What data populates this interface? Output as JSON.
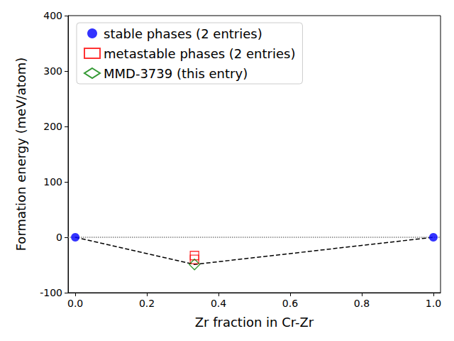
{
  "chart_data": {
    "type": "scatter",
    "x_label": "Zr fraction in Cr-Zr",
    "y_label": "Formation energy (meV/atom)",
    "xlim": [
      -0.02,
      1.02
    ],
    "xticks": [
      {
        "value": 0,
        "label": "0.0"
      },
      0.2,
      0.4,
      0.6,
      0.8,
      {
        "value": 1,
        "label": "1.0"
      }
    ],
    "ylim": [
      -100,
      400
    ],
    "yticks": [
      -100,
      0,
      100,
      200,
      300,
      400
    ],
    "grid": false,
    "legend": "upper left",
    "series": [
      {
        "name": "stable phases (2 entries)",
        "color": "#0000ff",
        "marker": "circle",
        "x": [
          0,
          1
        ],
        "values": [
          0,
          0
        ]
      },
      {
        "name": "metastable phases (2 entries)",
        "color": "#ff0000",
        "marker": "open_square",
        "x": [
          0.333,
          0.333
        ],
        "values": [
          -33,
          -40
        ]
      },
      {
        "name": "MMD-3739 (this entry)",
        "color": "#008000",
        "marker": "open_diamond",
        "x": [
          0.333
        ],
        "values": [
          -49
        ]
      }
    ],
    "hull": {
      "x": [
        0,
        0.333,
        1
      ],
      "values": [
        0,
        -49,
        0
      ],
      "color": "#000000",
      "line_style": "dashed"
    },
    "zero_line": {
      "value": 0,
      "color": "#808080",
      "line_style": "dotted"
    }
  }
}
